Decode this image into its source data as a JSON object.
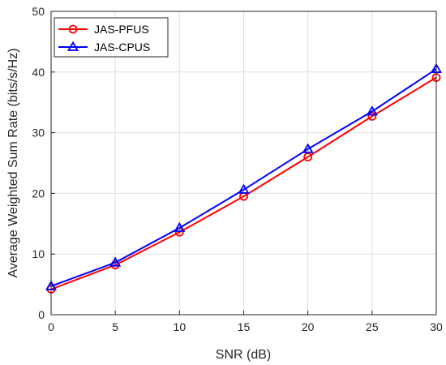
{
  "chart_data": {
    "type": "line",
    "title": "",
    "xlabel": "SNR (dB)",
    "ylabel": "Average Weighted Sum Rate (bits/s/Hz)",
    "xlim": [
      0,
      30
    ],
    "ylim": [
      0,
      50
    ],
    "xticks": [
      0,
      5,
      10,
      15,
      20,
      25,
      30
    ],
    "yticks": [
      0,
      10,
      20,
      30,
      40,
      50
    ],
    "grid": true,
    "legend_position": "top-left",
    "series": [
      {
        "name": "JAS-PFUS",
        "color": "#ff0000",
        "marker": "circle",
        "x": [
          0,
          5,
          10,
          15,
          20,
          25,
          30
        ],
        "y": [
          4.2,
          8.2,
          13.6,
          19.5,
          26.0,
          32.7,
          39.1
        ]
      },
      {
        "name": "JAS-CPUS",
        "color": "#0000ff",
        "marker": "triangle",
        "x": [
          0,
          5,
          10,
          15,
          20,
          25,
          30
        ],
        "y": [
          4.7,
          8.6,
          14.3,
          20.6,
          27.3,
          33.5,
          40.5
        ]
      }
    ]
  }
}
